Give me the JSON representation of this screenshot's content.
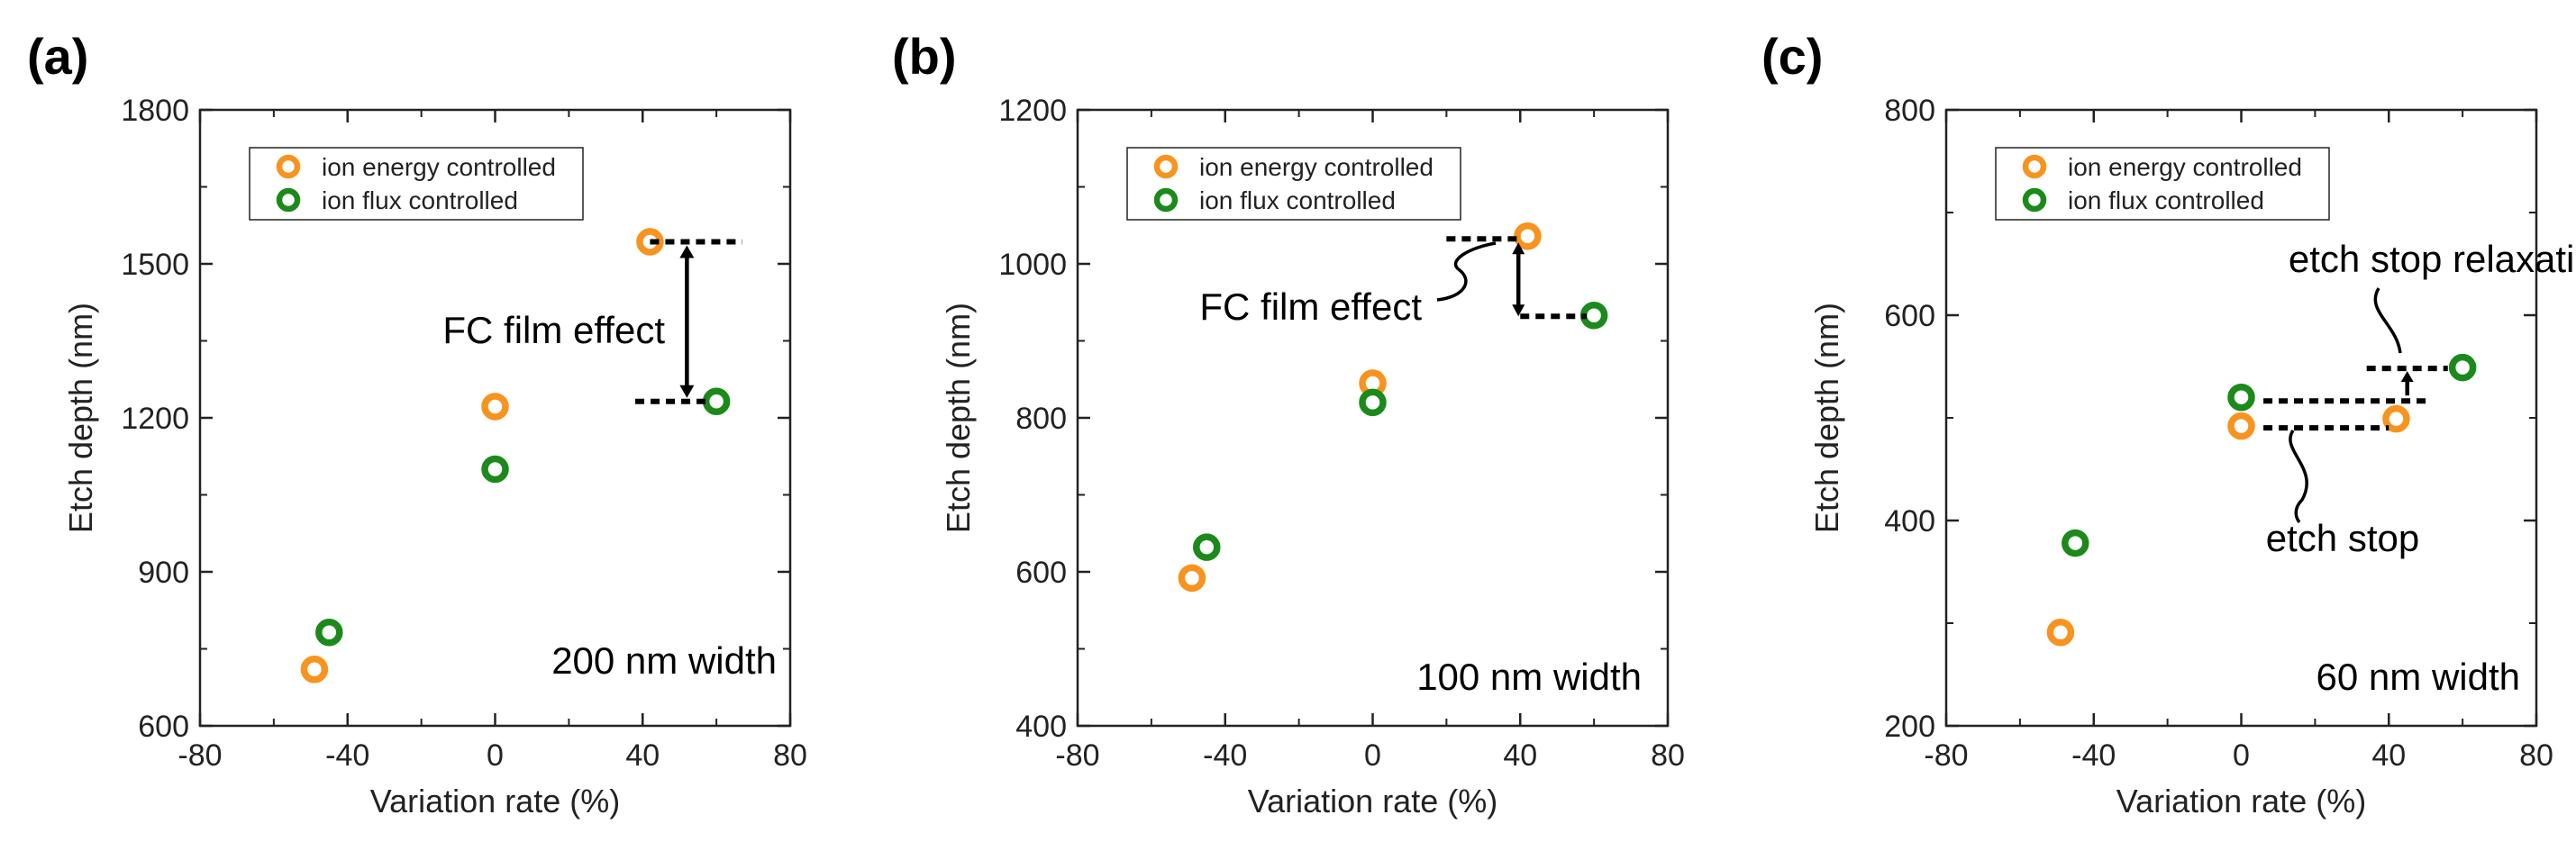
{
  "colors": {
    "energy": "#F7931E",
    "flux": "#1B8A1B",
    "axis": "#222222",
    "annot": "#000000"
  },
  "chart_data": [
    {
      "type": "scatter",
      "panel": "(a)",
      "xlabel": "Variation rate (%)",
      "ylabel": "Etch depth (nm)",
      "xlim": [
        -80,
        80
      ],
      "ylim": [
        600,
        1800
      ],
      "xticks": [
        -80,
        -40,
        0,
        40,
        80
      ],
      "yticks": [
        600,
        900,
        1200,
        1500,
        1800
      ],
      "legend": [
        "ion energy controlled",
        "ion flux controlled"
      ],
      "series": [
        {
          "name": "ion energy controlled",
          "x": [
            -49,
            0,
            42
          ],
          "y": [
            710,
            1222,
            1543
          ]
        },
        {
          "name": "ion flux controlled",
          "x": [
            -45,
            0,
            60
          ],
          "y": [
            782,
            1100,
            1232
          ]
        }
      ],
      "width_label": "200 nm width",
      "annotation": "FC film effect"
    },
    {
      "type": "scatter",
      "panel": "(b)",
      "xlabel": "Variation rate (%)",
      "ylabel": "Etch depth (nm)",
      "xlim": [
        -80,
        80
      ],
      "ylim": [
        400,
        1200
      ],
      "xticks": [
        -80,
        -40,
        0,
        40,
        80
      ],
      "yticks": [
        400,
        600,
        800,
        1000,
        1200
      ],
      "legend": [
        "ion energy controlled",
        "ion flux controlled"
      ],
      "series": [
        {
          "name": "ion energy controlled",
          "x": [
            -49,
            0,
            42
          ],
          "y": [
            592,
            845,
            1036
          ]
        },
        {
          "name": "ion flux controlled",
          "x": [
            -45,
            0,
            60
          ],
          "y": [
            632,
            820,
            933
          ]
        }
      ],
      "width_label": "100 nm width",
      "annotation": "FC film effect"
    },
    {
      "type": "scatter",
      "panel": "(c)",
      "xlabel": "Variation rate (%)",
      "ylabel": "Etch depth (nm)",
      "xlim": [
        -80,
        80
      ],
      "ylim": [
        200,
        800
      ],
      "xticks": [
        -80,
        -40,
        0,
        40,
        80
      ],
      "yticks": [
        200,
        400,
        600,
        800
      ],
      "legend": [
        "ion energy controlled",
        "ion flux controlled"
      ],
      "series": [
        {
          "name": "ion energy controlled",
          "x": [
            -49,
            0,
            42
          ],
          "y": [
            291,
            492,
            499
          ]
        },
        {
          "name": "ion flux controlled",
          "x": [
            -45,
            0,
            60
          ],
          "y": [
            378,
            520,
            549
          ]
        }
      ],
      "width_label": "60 nm width",
      "annotation_top": "etch stop relaxation",
      "annotation_bottom": "etch stop"
    }
  ]
}
